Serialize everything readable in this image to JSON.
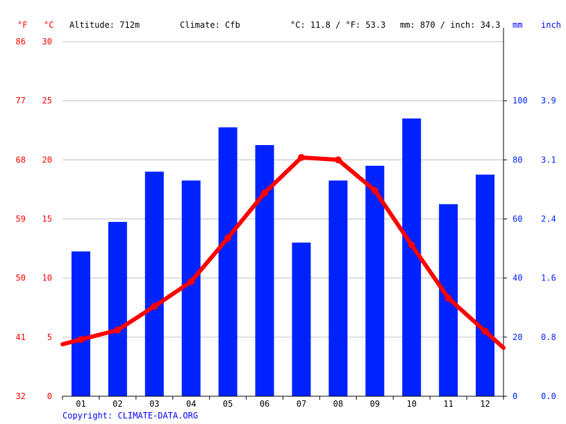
{
  "header": {
    "unit_f": "°F",
    "unit_c": "°C",
    "altitude": "Altitude: 712m",
    "climate": "Climate: Cfb",
    "temp_avg": "°C: 11.8 / °F: 53.3",
    "precip_total": "mm: 870 / inch: 34.3",
    "unit_mm": "mm",
    "unit_inch": "inch"
  },
  "footer": {
    "copyright": "Copyright: CLIMATE-DATA.ORG"
  },
  "colors": {
    "temperature": "#ff0000",
    "precipitation": "#0022ff",
    "grid": "#c0c0c0"
  },
  "chart_data": {
    "type": "bar",
    "categories": [
      "01",
      "02",
      "03",
      "04",
      "05",
      "06",
      "07",
      "08",
      "09",
      "10",
      "11",
      "12"
    ],
    "series": [
      {
        "kind": "bar",
        "axis": "right",
        "values": [
          49,
          59,
          76,
          73,
          91,
          85,
          52,
          73,
          78,
          94,
          65,
          75
        ]
      },
      {
        "kind": "line",
        "axis": "left",
        "values": [
          4.8,
          5.6,
          7.6,
          9.7,
          13.4,
          17.2,
          20.2,
          20.0,
          17.4,
          12.8,
          8.3,
          5.5
        ]
      }
    ],
    "y_left": {
      "celsius_ticks": [
        "0",
        "5",
        "10",
        "15",
        "20",
        "25",
        "30"
      ],
      "fahrenheit_ticks": [
        "32",
        "41",
        "50",
        "59",
        "68",
        "77",
        "86"
      ],
      "ylim": [
        0,
        30
      ]
    },
    "y_right": {
      "mm_ticks": [
        "0",
        "20",
        "40",
        "60",
        "80",
        "100"
      ],
      "inch_ticks": [
        "0.0",
        "0.8",
        "1.6",
        "2.4",
        "3.1",
        "3.9"
      ],
      "ylim": [
        0,
        120
      ]
    },
    "grid": true
  }
}
